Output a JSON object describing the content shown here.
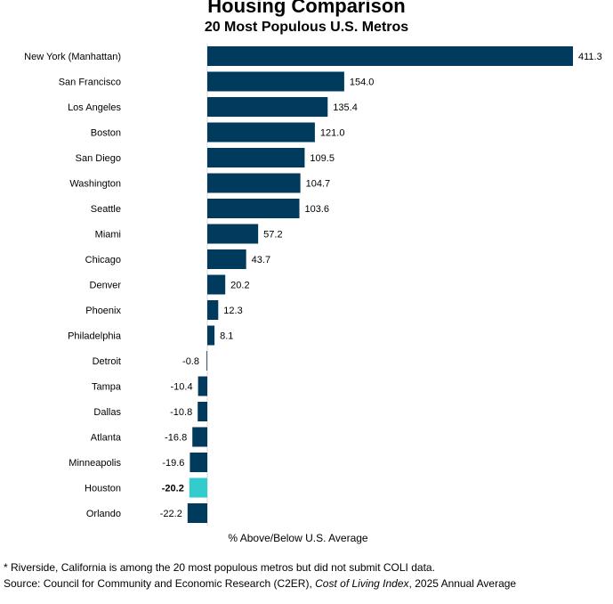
{
  "chart_data": {
    "type": "bar",
    "orientation": "horizontal",
    "title": "Housing Comparison",
    "subtitle": "20 Most Populous U.S. Metros",
    "xlabel": "% Above/Below U.S. Average",
    "categories": [
      "New York (Manhattan)",
      "San Francisco",
      "Los Angeles",
      "Boston",
      "San Diego",
      "Washington",
      "Seattle",
      "Miami",
      "Chicago",
      "Denver",
      "Phoenix",
      "Philadelphia",
      "Detroit",
      "Tampa",
      "Dallas",
      "Atlanta",
      "Minneapolis",
      "Houston",
      "Orlando"
    ],
    "values": [
      411.3,
      154.0,
      135.4,
      121.0,
      109.5,
      104.7,
      103.6,
      57.2,
      43.7,
      20.2,
      12.3,
      8.1,
      -0.8,
      -10.4,
      -10.8,
      -16.8,
      -19.6,
      -20.2,
      -22.2
    ],
    "value_labels": [
      "411.3",
      "154.0",
      "135.4",
      "121.0",
      "109.5",
      "104.7",
      "103.6",
      "57.2",
      "43.7",
      "20.2",
      "12.3",
      "8.1",
      "-0.8",
      "-10.4",
      "-10.8",
      "-16.8",
      "-19.6",
      "-20.2",
      "-22.2"
    ],
    "highlight": "Houston",
    "colors": {
      "bar": "#003a5c",
      "highlight": "#33cccc"
    },
    "xlim": [
      -22.2,
      411.3
    ],
    "grid": false,
    "legend": "none"
  },
  "notes": {
    "footnote": "* Riverside, California is among the 20 most populous metros but did not submit COLI data.",
    "source_prefix": "Source: Council for Community and Economic Research (C2ER), ",
    "source_title": "Cost of Living Index",
    "source_suffix": ", 2025 Annual Average"
  }
}
